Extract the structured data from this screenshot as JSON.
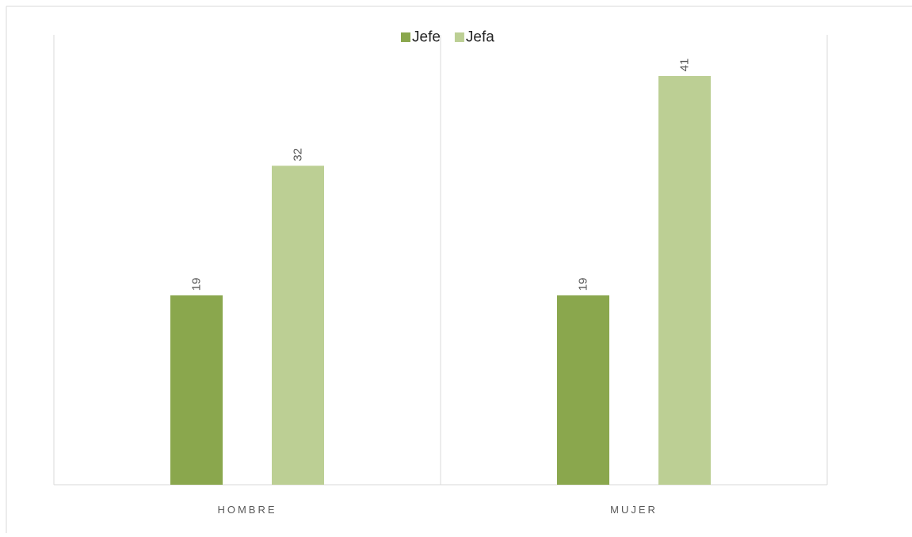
{
  "chart_data": {
    "type": "bar",
    "title": "",
    "xlabel": "",
    "ylabel": "",
    "categories": [
      "HOMBRE",
      "MUJER"
    ],
    "series": [
      {
        "name": "Jefe",
        "values": [
          19,
          19
        ]
      },
      {
        "name": "Jefa",
        "values": [
          32,
          41
        ]
      }
    ],
    "ylim": [
      0,
      41
    ],
    "grid": false,
    "legend_position": "top-center",
    "data_labels": true,
    "data_label_orientation": "rotated-vertical",
    "colors": {
      "series": [
        "#8aa74d",
        "#bccf94"
      ],
      "axis": "#d9d9d9",
      "frame": "#d9d9d9",
      "label_text": "#595959",
      "legend_text": "#262626"
    }
  }
}
